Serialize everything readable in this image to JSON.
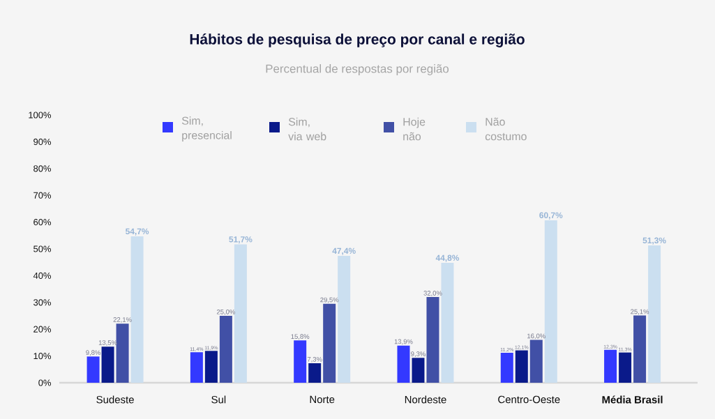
{
  "chart_data": {
    "type": "bar",
    "title": "Hábitos de pesquisa de preço por canal e região",
    "subtitle": "Percentual de respostas por região",
    "categories": [
      "Sudeste",
      "Sul",
      "Norte",
      "Nordeste",
      "Centro-Oeste",
      "Média Brasil"
    ],
    "series": [
      {
        "name": "Sim, presencial",
        "color": "#3339ff",
        "values": [
          9.8,
          11.4,
          15.8,
          13.9,
          11.2,
          12.3
        ],
        "value_labels": [
          "9,8%",
          "11,4%",
          "15,8%",
          "13,9%",
          "11,2%",
          "12,3%"
        ]
      },
      {
        "name": "Sim, via web",
        "color": "#0a1a8a",
        "values": [
          13.5,
          11.9,
          7.3,
          9.3,
          12.1,
          11.3
        ],
        "value_labels": [
          "13,5%",
          "11,9%",
          "7,3%",
          "9,3%",
          "12,1%",
          "11,3%"
        ]
      },
      {
        "name": "Hoje não",
        "color": "#4150a6",
        "values": [
          22.1,
          25.0,
          29.5,
          32.0,
          16.0,
          25.1
        ],
        "value_labels": [
          "22,1%",
          "25,0%",
          "29,5%",
          "32,0%",
          "16,0%",
          "25,1%"
        ]
      },
      {
        "name": "Não costumo",
        "color": "#cbdff0",
        "values": [
          54.7,
          51.7,
          47.4,
          44.8,
          60.7,
          51.3
        ],
        "value_labels": [
          "54,7%",
          "51,7%",
          "47,4%",
          "44,8%",
          "60,7%",
          "51,3%"
        ]
      }
    ],
    "ylim": [
      0,
      100
    ],
    "yticks": [
      {
        "value": 0,
        "label": "0%"
      },
      {
        "value": 10,
        "label": "10%"
      },
      {
        "value": 20,
        "label": "20%"
      },
      {
        "value": 30,
        "label": "30%"
      },
      {
        "value": 40,
        "label": "40%"
      },
      {
        "value": 50,
        "label": "50%"
      },
      {
        "value": 60,
        "label": "60%"
      },
      {
        "value": 70,
        "label": "70%"
      },
      {
        "value": 80,
        "label": "80%"
      },
      {
        "value": 90,
        "label": "90%"
      },
      {
        "value": 100,
        "label": "100%"
      }
    ],
    "legend": "top",
    "grid": false
  }
}
